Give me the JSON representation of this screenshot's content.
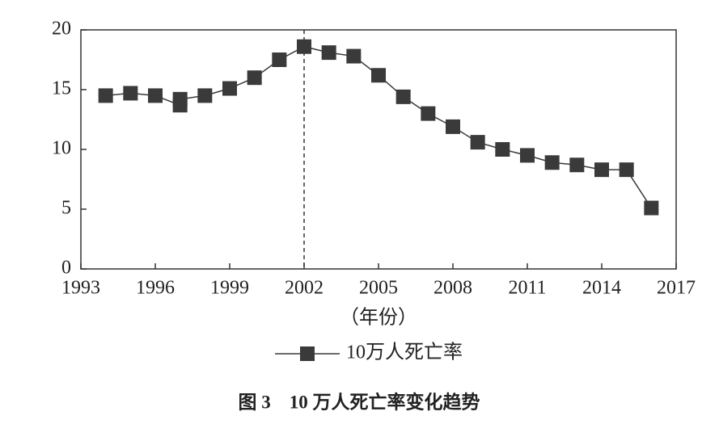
{
  "chart_data": {
    "type": "line",
    "title": "图 3　10 万人死亡率变化趋势",
    "x_label": "（年份）",
    "x": [
      1994,
      1995,
      1996,
      1997,
      1997,
      1998,
      1999,
      2000,
      2001,
      2002,
      2003,
      2004,
      2005,
      2006,
      2007,
      2008,
      2009,
      2010,
      2011,
      2012,
      2013,
      2014,
      2015,
      2016
    ],
    "series": [
      {
        "name": "10万人死亡率",
        "color": "#3a3a3a",
        "values": [
          14.5,
          14.7,
          14.5,
          13.7,
          14.2,
          14.5,
          15.1,
          16.0,
          17.5,
          18.6,
          18.1,
          17.8,
          16.2,
          14.4,
          13.0,
          11.9,
          10.6,
          10.0,
          9.5,
          8.9,
          8.7,
          8.3,
          8.3,
          5.1
        ]
      }
    ],
    "xlim": [
      1993,
      2017
    ],
    "xticks": [
      1993,
      1996,
      1999,
      2002,
      2005,
      2008,
      2011,
      2014,
      2017
    ],
    "ylim": [
      0,
      20
    ],
    "yticks": [
      0,
      5,
      10,
      15,
      20
    ],
    "reference_line": {
      "x": 2002,
      "style": "dashed"
    }
  }
}
